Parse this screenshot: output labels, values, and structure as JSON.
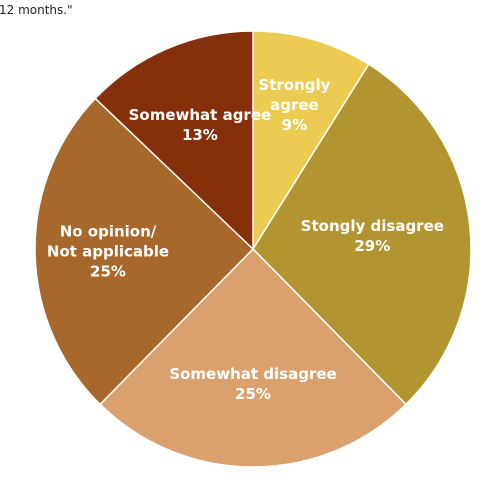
{
  "caption": "12 months.\"",
  "chart_data": {
    "type": "pie",
    "title": "",
    "start_angle_deg": 0,
    "direction": "clockwise",
    "slices": [
      {
        "label_lines": [
          "Strongly",
          "agree"
        ],
        "value_label": "9%",
        "value": 9,
        "color": "#EBCB52"
      },
      {
        "label_lines": [
          "Stongly disagree"
        ],
        "value_label": "29%",
        "value": 29,
        "color": "#B29530"
      },
      {
        "label_lines": [
          "Somewhat disagree"
        ],
        "value_label": "25%",
        "value": 25,
        "color": "#DAA16E"
      },
      {
        "label_lines": [
          "No opinion/",
          "Not applicable"
        ],
        "value_label": "25%",
        "value": 25,
        "color": "#A8682B"
      },
      {
        "label_lines": [
          "Somewhat agree"
        ],
        "value_label": "13%",
        "value": 13,
        "color": "#86300B"
      }
    ]
  }
}
